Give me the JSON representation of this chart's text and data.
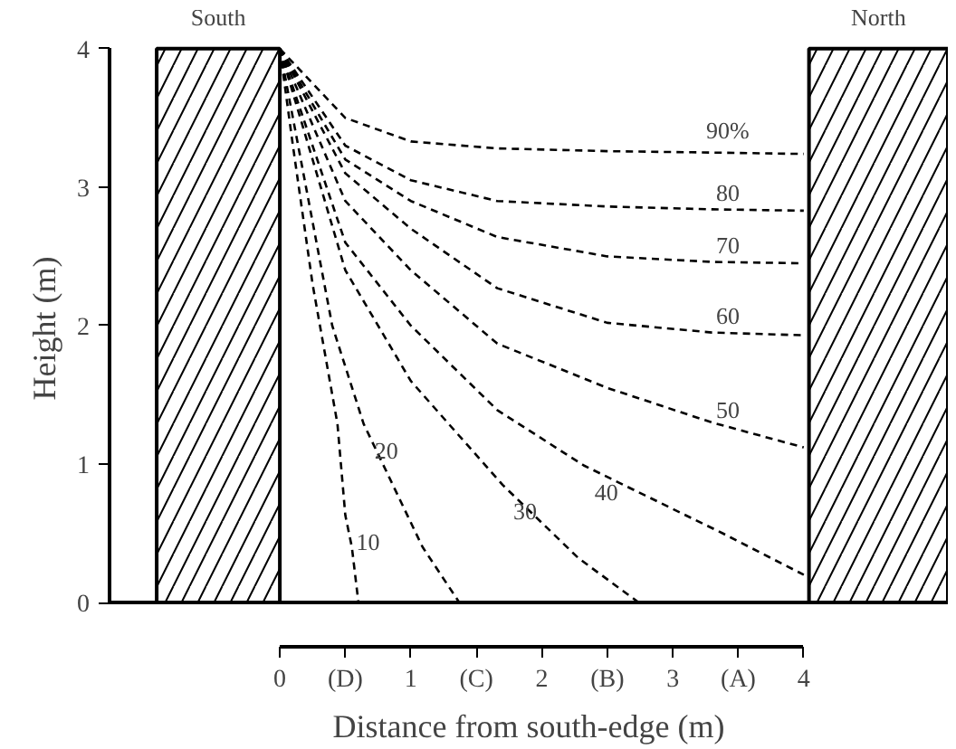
{
  "chart_data": {
    "type": "line",
    "xlabel": "Distance from south-edge (m)",
    "ylabel": "Height (m)",
    "xlim": [
      -1.3,
      5.1
    ],
    "ylim": [
      0,
      4
    ],
    "xticks": [
      0,
      {
        "value": 0.5,
        "label": "(D)"
      },
      1,
      {
        "value": 1.5,
        "label": "(C)"
      },
      2,
      {
        "value": 2.5,
        "label": "(B)"
      },
      3,
      {
        "value": 3.5,
        "label": "(A)"
      },
      4
    ],
    "yticks": [
      0,
      1,
      2,
      3,
      4
    ],
    "grid": false,
    "legend": false,
    "marker": "none",
    "line_style": "dashed",
    "color": "#000000",
    "series": [
      {
        "name": "90%",
        "x": [
          0,
          0.5,
          1.0,
          1.66,
          2.5,
          3.3,
          4
        ],
        "values": [
          4,
          3.5,
          3.33,
          3.28,
          3.26,
          3.25,
          3.24
        ]
      },
      {
        "name": "80",
        "x": [
          0,
          0.5,
          1.0,
          1.66,
          2.5,
          3.3,
          4
        ],
        "values": [
          4,
          3.3,
          3.05,
          2.9,
          2.86,
          2.84,
          2.83
        ]
      },
      {
        "name": "70",
        "x": [
          0,
          0.5,
          1.0,
          1.66,
          2.5,
          3.3,
          4
        ],
        "values": [
          4,
          3.2,
          2.9,
          2.64,
          2.5,
          2.46,
          2.45
        ]
      },
      {
        "name": "60",
        "x": [
          0,
          0.5,
          1.0,
          1.66,
          2.5,
          3.3,
          4
        ],
        "values": [
          4,
          3.1,
          2.7,
          2.27,
          2.02,
          1.95,
          1.93
        ]
      },
      {
        "name": "50",
        "x": [
          0,
          0.5,
          1.0,
          1.66,
          2.5,
          3.3,
          4
        ],
        "values": [
          4,
          2.9,
          2.4,
          1.87,
          1.55,
          1.3,
          1.12
        ]
      },
      {
        "name": "40",
        "x": [
          0,
          0.5,
          1.0,
          1.66,
          2.32,
          3.38,
          4
        ],
        "values": [
          4,
          2.6,
          2.0,
          1.39,
          0.99,
          0.5,
          0.2
        ]
      },
      {
        "name": "30",
        "x": [
          0,
          0.5,
          1.0,
          1.7,
          2.28,
          2.74
        ],
        "values": [
          4,
          2.4,
          1.6,
          0.85,
          0.32,
          0
        ]
      },
      {
        "name": "20",
        "x": [
          0,
          0.2,
          0.4,
          0.64,
          1.09,
          1.37
        ],
        "values": [
          4,
          3.0,
          2.0,
          1.29,
          0.4,
          0
        ]
      },
      {
        "name": "10",
        "x": [
          0,
          0.1,
          0.25,
          0.44,
          0.5,
          0.55,
          0.6
        ],
        "values": [
          4,
          3.3,
          2.3,
          1.29,
          0.63,
          0.4,
          0
        ]
      }
    ],
    "ref_lines": [
      {
        "axis": "y",
        "value": 0,
        "color": "#000000",
        "line_style": "solid"
      }
    ],
    "bands": [
      {
        "axis": "x",
        "from": -0.94,
        "to": 0,
        "label": "South"
      },
      {
        "axis": "x",
        "from": 4.04,
        "to": 5.1,
        "label": "North"
      }
    ]
  }
}
